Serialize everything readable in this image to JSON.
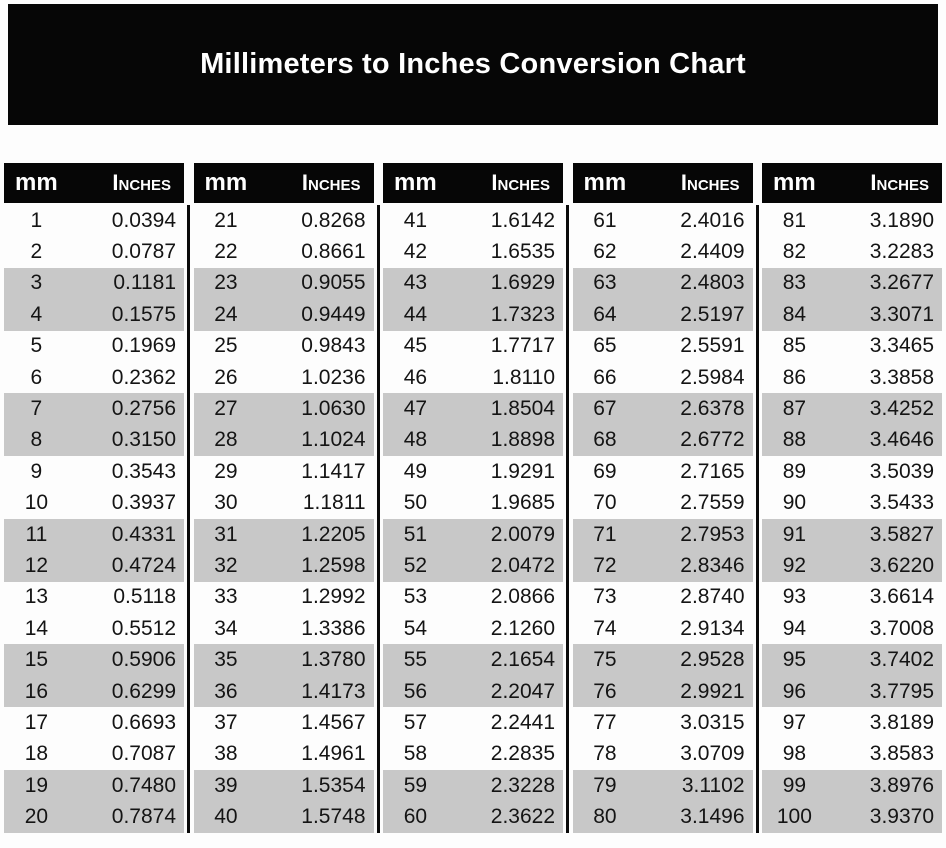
{
  "title": "Millimeters to Inches Conversion Chart",
  "column_headers": {
    "mm": "mm",
    "inches": "Inches"
  },
  "colors": {
    "banner_bg": "#060606",
    "header_bg": "#060606",
    "header_text": "#ffffff",
    "row_alt_bg": "#c8c8c8",
    "row_bg": "#fdfdfd",
    "text": "#141414"
  },
  "tables": [
    {
      "rows": [
        [
          "1",
          "0.0394"
        ],
        [
          "2",
          "0.0787"
        ],
        [
          "3",
          "0.1181"
        ],
        [
          "4",
          "0.1575"
        ],
        [
          "5",
          "0.1969"
        ],
        [
          "6",
          "0.2362"
        ],
        [
          "7",
          "0.2756"
        ],
        [
          "8",
          "0.3150"
        ],
        [
          "9",
          "0.3543"
        ],
        [
          "10",
          "0.3937"
        ],
        [
          "11",
          "0.4331"
        ],
        [
          "12",
          "0.4724"
        ],
        [
          "13",
          "0.5118"
        ],
        [
          "14",
          "0.5512"
        ],
        [
          "15",
          "0.5906"
        ],
        [
          "16",
          "0.6299"
        ],
        [
          "17",
          "0.6693"
        ],
        [
          "18",
          "0.7087"
        ],
        [
          "19",
          "0.7480"
        ],
        [
          "20",
          "0.7874"
        ]
      ]
    },
    {
      "rows": [
        [
          "21",
          "0.8268"
        ],
        [
          "22",
          "0.8661"
        ],
        [
          "23",
          "0.9055"
        ],
        [
          "24",
          "0.9449"
        ],
        [
          "25",
          "0.9843"
        ],
        [
          "26",
          "1.0236"
        ],
        [
          "27",
          "1.0630"
        ],
        [
          "28",
          "1.1024"
        ],
        [
          "29",
          "1.1417"
        ],
        [
          "30",
          "1.1811"
        ],
        [
          "31",
          "1.2205"
        ],
        [
          "32",
          "1.2598"
        ],
        [
          "33",
          "1.2992"
        ],
        [
          "34",
          "1.3386"
        ],
        [
          "35",
          "1.3780"
        ],
        [
          "36",
          "1.4173"
        ],
        [
          "37",
          "1.4567"
        ],
        [
          "38",
          "1.4961"
        ],
        [
          "39",
          "1.5354"
        ],
        [
          "40",
          "1.5748"
        ]
      ]
    },
    {
      "rows": [
        [
          "41",
          "1.6142"
        ],
        [
          "42",
          "1.6535"
        ],
        [
          "43",
          "1.6929"
        ],
        [
          "44",
          "1.7323"
        ],
        [
          "45",
          "1.7717"
        ],
        [
          "46",
          "1.8110"
        ],
        [
          "47",
          "1.8504"
        ],
        [
          "48",
          "1.8898"
        ],
        [
          "49",
          "1.9291"
        ],
        [
          "50",
          "1.9685"
        ],
        [
          "51",
          "2.0079"
        ],
        [
          "52",
          "2.0472"
        ],
        [
          "53",
          "2.0866"
        ],
        [
          "54",
          "2.1260"
        ],
        [
          "55",
          "2.1654"
        ],
        [
          "56",
          "2.2047"
        ],
        [
          "57",
          "2.2441"
        ],
        [
          "58",
          "2.2835"
        ],
        [
          "59",
          "2.3228"
        ],
        [
          "60",
          "2.3622"
        ]
      ]
    },
    {
      "rows": [
        [
          "61",
          "2.4016"
        ],
        [
          "62",
          "2.4409"
        ],
        [
          "63",
          "2.4803"
        ],
        [
          "64",
          "2.5197"
        ],
        [
          "65",
          "2.5591"
        ],
        [
          "66",
          "2.5984"
        ],
        [
          "67",
          "2.6378"
        ],
        [
          "68",
          "2.6772"
        ],
        [
          "69",
          "2.7165"
        ],
        [
          "70",
          "2.7559"
        ],
        [
          "71",
          "2.7953"
        ],
        [
          "72",
          "2.8346"
        ],
        [
          "73",
          "2.8740"
        ],
        [
          "74",
          "2.9134"
        ],
        [
          "75",
          "2.9528"
        ],
        [
          "76",
          "2.9921"
        ],
        [
          "77",
          "3.0315"
        ],
        [
          "78",
          "3.0709"
        ],
        [
          "79",
          "3.1102"
        ],
        [
          "80",
          "3.1496"
        ]
      ]
    },
    {
      "rows": [
        [
          "81",
          "3.1890"
        ],
        [
          "82",
          "3.2283"
        ],
        [
          "83",
          "3.2677"
        ],
        [
          "84",
          "3.3071"
        ],
        [
          "85",
          "3.3465"
        ],
        [
          "86",
          "3.3858"
        ],
        [
          "87",
          "3.4252"
        ],
        [
          "88",
          "3.4646"
        ],
        [
          "89",
          "3.5039"
        ],
        [
          "90",
          "3.5433"
        ],
        [
          "91",
          "3.5827"
        ],
        [
          "92",
          "3.6220"
        ],
        [
          "93",
          "3.6614"
        ],
        [
          "94",
          "3.7008"
        ],
        [
          "95",
          "3.7402"
        ],
        [
          "96",
          "3.7795"
        ],
        [
          "97",
          "3.8189"
        ],
        [
          "98",
          "3.8583"
        ],
        [
          "99",
          "3.8976"
        ],
        [
          "100",
          "3.9370"
        ]
      ]
    }
  ]
}
